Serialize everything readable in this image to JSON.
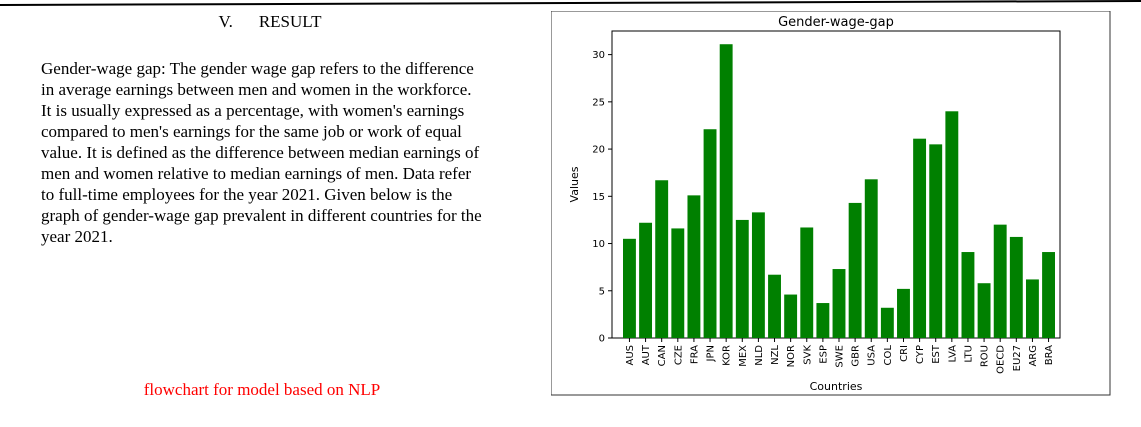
{
  "section": {
    "number": "V.",
    "title": "RESULT"
  },
  "paragraph": "Gender-wage gap: The gender wage gap refers to the difference in average earnings between men and women in the workforce. It is usually expressed as a percentage, with women's earnings compared to men's earnings for the same job or work of equal value. It is defined as the difference between median earnings of men and women relative to median earnings of men. Data refer to full-time employees for the year 2021. Given below is the graph of gender-wage gap prevalent in different countries for the year 2021.",
  "caption": "flowchart for model based on NLP",
  "colors": {
    "caption": "#ff0000",
    "bar": "#008000",
    "rule": "#000000"
  },
  "chart_data": {
    "type": "bar",
    "title": "Gender-wage-gap",
    "xlabel": "Countries",
    "ylabel": "Values",
    "ylim": [
      0,
      32.5
    ],
    "yticks": [
      0,
      5,
      10,
      15,
      20,
      25,
      30
    ],
    "grid": false,
    "categories": [
      "AUS",
      "AUT",
      "CAN",
      "CZE",
      "FRA",
      "JPN",
      "KOR",
      "MEX",
      "NLD",
      "NZL",
      "NOR",
      "SVK",
      "ESP",
      "SWE",
      "GBR",
      "USA",
      "COL",
      "CRI",
      "CYP",
      "EST",
      "LVA",
      "LTU",
      "ROU",
      "OECD",
      "EU27",
      "ARG",
      "BRA"
    ],
    "values": [
      10.5,
      12.2,
      16.7,
      11.6,
      15.1,
      22.1,
      31.1,
      12.5,
      13.3,
      6.7,
      4.6,
      11.7,
      3.7,
      7.3,
      14.3,
      16.8,
      3.2,
      5.2,
      21.1,
      20.5,
      24.0,
      9.1,
      5.8,
      12.0,
      10.7,
      6.2,
      9.1
    ]
  }
}
